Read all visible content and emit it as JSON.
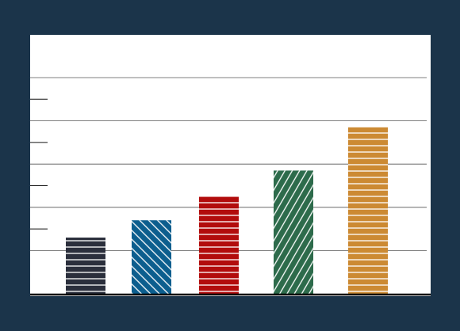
{
  "chart_data": {
    "type": "bar",
    "title": "",
    "xlabel": "",
    "ylabel": "",
    "categories": [
      "",
      "",
      "",
      "",
      ""
    ],
    "values": [
      13,
      17,
      22.5,
      28.5,
      38.5
    ],
    "ylim": [
      0,
      50
    ],
    "gridlines": [
      10,
      20,
      30,
      40,
      50
    ],
    "y_ticks": [
      15,
      25,
      35,
      45
    ],
    "grid": true,
    "legend": "none",
    "bars": [
      {
        "color": "#2b2f3c",
        "pattern": "horizontal-lines"
      },
      {
        "color": "#0c5e8e",
        "pattern": "forward-diagonal"
      },
      {
        "color": "#b20c0c",
        "pattern": "horizontal-lines"
      },
      {
        "color": "#2d6b4b",
        "pattern": "backward-diagonal"
      },
      {
        "color": "#cc8a33",
        "pattern": "horizontal-lines"
      }
    ],
    "colors": {
      "background": "#1b344a",
      "plot": "#ffffff",
      "grid": "#555555",
      "axis": "#000000"
    }
  }
}
